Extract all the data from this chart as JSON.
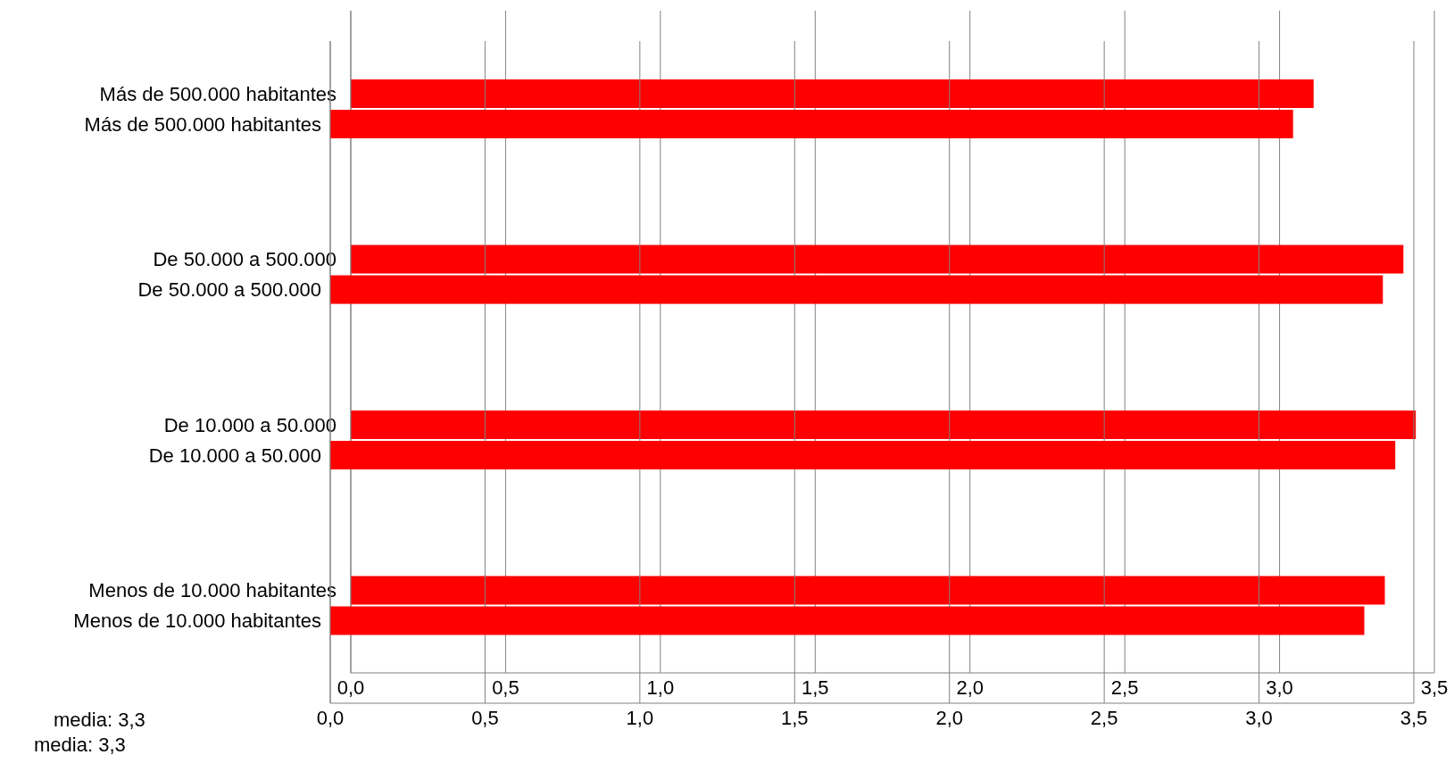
{
  "chart_data": [
    {
      "type": "bar",
      "orientation": "horizontal",
      "categories": [
        "Más de 500.000 habitantes",
        "De 50.000 a 500.000",
        "De 10.000 a 50.000",
        "Menos de 10.000 habitantes"
      ],
      "values": [
        3.11,
        3.4,
        3.44,
        3.34
      ],
      "color": "#ff0000",
      "xlim": [
        0,
        3.5
      ],
      "xticks": [
        {
          "value": 0,
          "label": "0,0"
        },
        {
          "value": 0.5,
          "label": "0,5"
        },
        {
          "value": 1,
          "label": "1,0"
        },
        {
          "value": 1.5,
          "label": "1,5"
        },
        {
          "value": 2,
          "label": "2,0"
        },
        {
          "value": 2.5,
          "label": "2,5"
        },
        {
          "value": 3,
          "label": "3,0"
        },
        {
          "value": 3.5,
          "label": "3,5"
        }
      ],
      "grid": "x",
      "annotations": [
        "media: 3,3"
      ]
    },
    {
      "type": "bar",
      "orientation": "horizontal",
      "categories": [
        "Más de 500.000 habitantes",
        "De 50.000 a 500.000",
        "De 10.000 a 50.000",
        "Menos de 10.000 habitantes"
      ],
      "values": [
        3.11,
        3.4,
        3.44,
        3.34
      ],
      "color": "#ff0000",
      "xlim": [
        0,
        3.5
      ],
      "xticks": [
        {
          "value": 0,
          "label": "0,0"
        },
        {
          "value": 0.5,
          "label": "0,5"
        },
        {
          "value": 1,
          "label": "1,0"
        },
        {
          "value": 1.5,
          "label": "1,5"
        },
        {
          "value": 2,
          "label": "2,0"
        },
        {
          "value": 2.5,
          "label": "2,5"
        },
        {
          "value": 3,
          "label": "3,0"
        },
        {
          "value": 3.5,
          "label": "3,5"
        }
      ],
      "grid": "x",
      "annotations": [
        "media: 3,3"
      ]
    }
  ]
}
